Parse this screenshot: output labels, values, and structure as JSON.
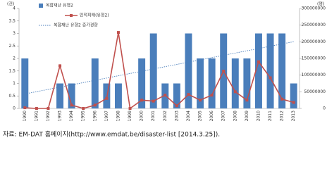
{
  "chart_data": {
    "type": "bar-line",
    "y_label": "(건)",
    "y2_label": "(명)",
    "categories": [
      "1990",
      "1991",
      "1992",
      "1993",
      "1994",
      "1995",
      "1996",
      "1997",
      "1998",
      "1999",
      "2000",
      "2001",
      "2002",
      "2003",
      "2004",
      "2005",
      "2006",
      "2007",
      "2008",
      "2009",
      "2010",
      "2011",
      "2012",
      "2013"
    ],
    "series": [
      {
        "name": "복합재난 유형2",
        "color": "#4a7ebb",
        "type": "bar",
        "values": [
          2,
          0,
          0,
          1,
          1,
          0,
          2,
          1,
          1,
          0,
          2,
          3,
          1,
          1,
          3,
          2,
          2,
          3,
          2,
          2,
          3,
          3,
          3,
          1
        ]
      },
      {
        "name": "인적피해(유형2)",
        "color": "#c0504d",
        "type": "line",
        "axis": "y2",
        "values": [
          2000000,
          0,
          0,
          128000000,
          10000000,
          0,
          10000000,
          30000000,
          228000000,
          0,
          25000000,
          22000000,
          40000000,
          8000000,
          42000000,
          25000000,
          40000000,
          112000000,
          50000000,
          25000000,
          140000000,
          92000000,
          28000000,
          18000000
        ]
      }
    ],
    "trend_name": "복합재난 유형2 증가경향",
    "trend_color": "#4a7ebb",
    "ylim": [
      0,
      4
    ],
    "yticks": [
      0,
      0.5,
      1,
      1.5,
      2,
      2.5,
      3,
      3.5,
      4
    ],
    "y2lim": [
      0,
      300000000
    ],
    "y2ticks": [
      0,
      50000000,
      100000000,
      150000000,
      200000000,
      250000000,
      300000000
    ]
  },
  "caption": "자료: EM-DAT 홈페이지(http://www.emdat.be/disaster-list [2014.3.25])."
}
